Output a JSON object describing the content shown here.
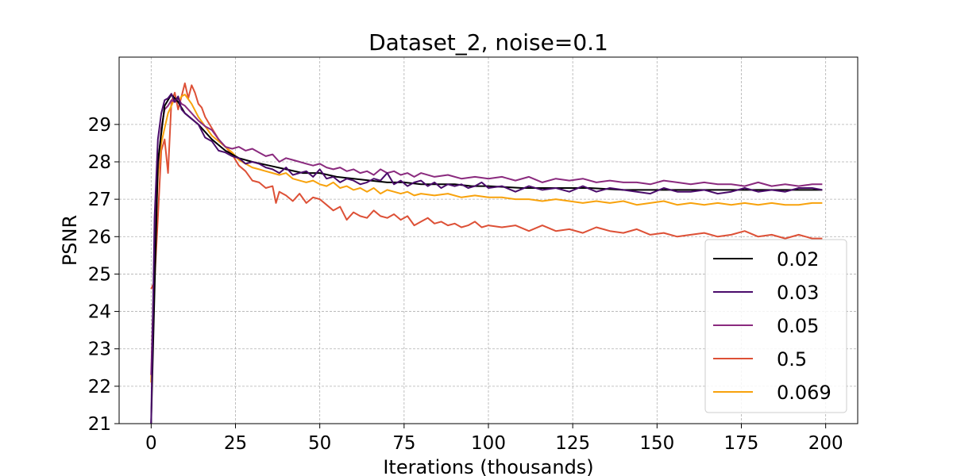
{
  "chart_data": {
    "type": "line",
    "title": "Dataset_2, noise=0.1",
    "xlabel": "Iterations (thousands)",
    "ylabel": "PSNR",
    "xlim": [
      -9.5,
      209.5
    ],
    "ylim": [
      21,
      30.8
    ],
    "xticks": [
      0,
      25,
      50,
      75,
      100,
      125,
      150,
      175,
      200
    ],
    "yticks": [
      21,
      22,
      23,
      24,
      25,
      26,
      27,
      28,
      29
    ],
    "grid": true,
    "legend_position": "lower-right",
    "series": [
      {
        "name": "0.02",
        "color": "#000000",
        "x": [
          0,
          2,
          4,
          6,
          8,
          10,
          14,
          18,
          22,
          26,
          30,
          35,
          40,
          45,
          50,
          55,
          60,
          65,
          70,
          75,
          80,
          85,
          90,
          95,
          100,
          110,
          120,
          130,
          140,
          150,
          160,
          170,
          180,
          190,
          199
        ],
        "y": [
          21.0,
          28.0,
          29.5,
          29.8,
          29.6,
          29.3,
          29.0,
          28.6,
          28.3,
          28.1,
          28.0,
          27.9,
          27.8,
          27.7,
          27.7,
          27.6,
          27.55,
          27.5,
          27.45,
          27.45,
          27.4,
          27.4,
          27.4,
          27.35,
          27.35,
          27.3,
          27.3,
          27.3,
          27.25,
          27.25,
          27.25,
          27.25,
          27.25,
          27.25,
          27.25
        ]
      },
      {
        "name": "0.03",
        "color": "#4a0c6b",
        "x": [
          0,
          1,
          2,
          3,
          4,
          5,
          6,
          7,
          8,
          9,
          10,
          12,
          14,
          16,
          18,
          20,
          22,
          24,
          26,
          28,
          30,
          32,
          34,
          36,
          38,
          40,
          42,
          44,
          46,
          48,
          50,
          52,
          54,
          56,
          58,
          60,
          62,
          64,
          66,
          68,
          70,
          72,
          74,
          76,
          78,
          80,
          82,
          84,
          86,
          88,
          90,
          92,
          94,
          96,
          98,
          100,
          104,
          108,
          112,
          116,
          120,
          124,
          128,
          132,
          136,
          140,
          144,
          148,
          152,
          156,
          160,
          164,
          168,
          172,
          176,
          180,
          184,
          188,
          192,
          196,
          199
        ],
        "y": [
          21.0,
          26.5,
          28.6,
          29.3,
          29.65,
          29.7,
          29.82,
          29.6,
          29.75,
          29.4,
          29.3,
          29.15,
          29.0,
          28.65,
          28.55,
          28.3,
          28.25,
          28.15,
          28.1,
          27.95,
          28.0,
          27.95,
          27.85,
          27.8,
          27.7,
          27.85,
          27.65,
          27.7,
          27.75,
          27.6,
          27.8,
          27.55,
          27.6,
          27.45,
          27.55,
          27.5,
          27.4,
          27.45,
          27.55,
          27.5,
          27.7,
          27.4,
          27.5,
          27.35,
          27.45,
          27.5,
          27.35,
          27.45,
          27.3,
          27.4,
          27.35,
          27.4,
          27.3,
          27.35,
          27.45,
          27.3,
          27.35,
          27.2,
          27.35,
          27.25,
          27.3,
          27.2,
          27.35,
          27.2,
          27.3,
          27.25,
          27.2,
          27.15,
          27.3,
          27.2,
          27.2,
          27.25,
          27.15,
          27.2,
          27.3,
          27.2,
          27.25,
          27.2,
          27.3,
          27.3,
          27.25
        ]
      },
      {
        "name": "0.05",
        "color": "#8a2a7e",
        "x": [
          0,
          1,
          2,
          3,
          4,
          5,
          6,
          7,
          8,
          9,
          10,
          12,
          14,
          16,
          18,
          20,
          22,
          24,
          26,
          28,
          30,
          32,
          34,
          36,
          38,
          40,
          42,
          44,
          46,
          48,
          50,
          52,
          54,
          56,
          58,
          60,
          62,
          64,
          66,
          68,
          70,
          72,
          74,
          76,
          78,
          80,
          84,
          88,
          92,
          96,
          100,
          104,
          108,
          112,
          116,
          120,
          124,
          128,
          132,
          136,
          140,
          144,
          148,
          152,
          156,
          160,
          164,
          168,
          172,
          176,
          180,
          184,
          188,
          192,
          196,
          199
        ],
        "y": [
          22.3,
          25.5,
          27.8,
          28.9,
          29.4,
          29.5,
          29.65,
          29.6,
          29.7,
          29.55,
          29.5,
          29.3,
          29.1,
          28.95,
          28.85,
          28.6,
          28.4,
          28.35,
          28.4,
          28.3,
          28.35,
          28.25,
          28.15,
          28.2,
          28.0,
          28.1,
          28.05,
          28.0,
          27.95,
          27.9,
          27.95,
          27.85,
          27.8,
          27.85,
          27.75,
          27.8,
          27.7,
          27.75,
          27.65,
          27.8,
          27.7,
          27.75,
          27.65,
          27.7,
          27.6,
          27.7,
          27.6,
          27.65,
          27.55,
          27.6,
          27.55,
          27.6,
          27.5,
          27.6,
          27.45,
          27.55,
          27.5,
          27.55,
          27.45,
          27.5,
          27.45,
          27.45,
          27.4,
          27.5,
          27.45,
          27.4,
          27.45,
          27.4,
          27.4,
          27.35,
          27.45,
          27.35,
          27.4,
          27.35,
          27.4,
          27.4
        ]
      },
      {
        "name": "0.5",
        "color": "#dd5036",
        "x": [
          0,
          1,
          2,
          3,
          4,
          5,
          6,
          7,
          8,
          9,
          10,
          11,
          12,
          13,
          14,
          15,
          16,
          18,
          20,
          22,
          24,
          26,
          28,
          30,
          32,
          34,
          36,
          37,
          38,
          40,
          42,
          44,
          46,
          48,
          50,
          52,
          54,
          56,
          58,
          60,
          62,
          64,
          66,
          68,
          70,
          72,
          74,
          76,
          78,
          80,
          82,
          84,
          86,
          88,
          90,
          92,
          94,
          96,
          98,
          100,
          104,
          108,
          112,
          116,
          120,
          124,
          128,
          132,
          136,
          140,
          144,
          148,
          152,
          156,
          160,
          164,
          168,
          172,
          176,
          180,
          184,
          188,
          192,
          196,
          199
        ],
        "y": [
          24.6,
          24.8,
          26.5,
          28.3,
          28.6,
          27.7,
          29.6,
          29.85,
          29.4,
          29.75,
          30.1,
          29.7,
          30.05,
          29.85,
          29.55,
          29.45,
          29.2,
          28.9,
          28.6,
          28.4,
          28.2,
          27.9,
          27.75,
          27.5,
          27.45,
          27.3,
          27.35,
          26.9,
          27.2,
          27.1,
          26.95,
          27.15,
          26.9,
          27.05,
          27.0,
          26.85,
          26.7,
          26.8,
          26.45,
          26.65,
          26.55,
          26.5,
          26.7,
          26.55,
          26.5,
          26.6,
          26.45,
          26.55,
          26.3,
          26.4,
          26.5,
          26.35,
          26.4,
          26.3,
          26.35,
          26.25,
          26.3,
          26.4,
          26.25,
          26.3,
          26.25,
          26.3,
          26.15,
          26.3,
          26.15,
          26.2,
          26.1,
          26.25,
          26.15,
          26.1,
          26.2,
          26.05,
          26.1,
          26.0,
          26.05,
          26.1,
          26.0,
          26.05,
          26.15,
          26.0,
          26.05,
          25.95,
          26.05,
          25.95,
          25.95
        ]
      },
      {
        "name": "0.069",
        "color": "#f8a20c",
        "x": [
          0,
          1,
          2,
          3,
          4,
          5,
          6,
          7,
          8,
          9,
          10,
          12,
          14,
          16,
          18,
          20,
          22,
          24,
          26,
          28,
          30,
          32,
          34,
          36,
          38,
          40,
          42,
          44,
          46,
          48,
          50,
          52,
          54,
          56,
          58,
          60,
          62,
          64,
          66,
          68,
          70,
          72,
          74,
          76,
          78,
          80,
          84,
          88,
          92,
          96,
          100,
          104,
          108,
          112,
          116,
          120,
          124,
          128,
          132,
          136,
          140,
          144,
          148,
          152,
          156,
          160,
          164,
          168,
          172,
          176,
          180,
          184,
          188,
          192,
          196,
          199
        ],
        "y": [
          22.1,
          25.5,
          27.6,
          28.5,
          28.9,
          29.3,
          29.5,
          29.7,
          29.6,
          29.75,
          29.8,
          29.55,
          29.2,
          28.95,
          28.7,
          28.55,
          28.4,
          28.25,
          28.05,
          27.95,
          27.85,
          27.8,
          27.75,
          27.7,
          27.65,
          27.7,
          27.55,
          27.5,
          27.45,
          27.5,
          27.4,
          27.35,
          27.45,
          27.3,
          27.35,
          27.25,
          27.3,
          27.2,
          27.3,
          27.15,
          27.25,
          27.2,
          27.15,
          27.2,
          27.1,
          27.15,
          27.1,
          27.15,
          27.05,
          27.1,
          27.05,
          27.05,
          27.0,
          27.0,
          26.95,
          27.0,
          26.95,
          26.9,
          26.95,
          26.9,
          26.95,
          26.85,
          26.9,
          26.95,
          26.85,
          26.9,
          26.85,
          26.9,
          26.85,
          26.9,
          26.85,
          26.9,
          26.85,
          26.85,
          26.9,
          26.9
        ]
      }
    ]
  }
}
